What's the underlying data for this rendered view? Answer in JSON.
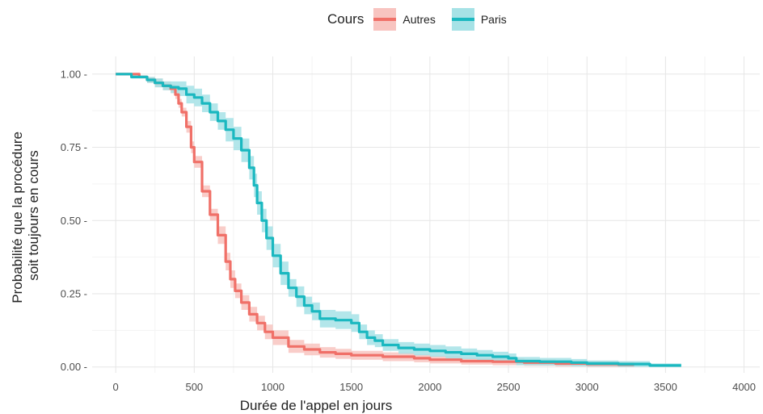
{
  "legend": {
    "title": "Cours",
    "items": [
      {
        "label": "Autres",
        "color": "#F07068",
        "fill": "#F8C4C0"
      },
      {
        "label": "Paris",
        "color": "#1AB8C0",
        "fill": "#A6E2E6"
      }
    ]
  },
  "chart_data": {
    "type": "line",
    "xlabel": "Durée de l'appel en jours",
    "ylabel": [
      "Probabilité que la procédure",
      "soit toujours en cours"
    ],
    "xlim": [
      -150,
      4100
    ],
    "ylim": [
      -0.02,
      1.06
    ],
    "xticks": [
      0,
      500,
      1000,
      1500,
      2000,
      2500,
      3000,
      3500,
      4000
    ],
    "xtick_labels": [
      "0",
      "500",
      "1000",
      "1500",
      "2000",
      "2500",
      "3000",
      "3500",
      "4000"
    ],
    "yticks": [
      0,
      0.25,
      0.5,
      0.75,
      1
    ],
    "ytick_labels": [
      "0.00 -",
      "0.25 -",
      "0.50 -",
      "0.75 -",
      "1.00 -"
    ],
    "grid": true,
    "legend_position": "top",
    "series": [
      {
        "name": "Autres",
        "color": "#F07068",
        "band_color": "#F8C4C0",
        "x": [
          0,
          100,
          150,
          200,
          250,
          300,
          350,
          380,
          400,
          420,
          450,
          480,
          500,
          550,
          600,
          650,
          700,
          730,
          760,
          800,
          850,
          900,
          950,
          1000,
          1100,
          1200,
          1300,
          1400,
          1500,
          1600,
          1700,
          1800,
          1900,
          2000,
          2200,
          2400,
          2600,
          2800,
          3000,
          3200,
          3300
        ],
        "y": [
          1.0,
          1.0,
          0.99,
          0.98,
          0.97,
          0.96,
          0.95,
          0.93,
          0.9,
          0.87,
          0.82,
          0.75,
          0.7,
          0.6,
          0.52,
          0.45,
          0.36,
          0.3,
          0.26,
          0.22,
          0.18,
          0.15,
          0.12,
          0.1,
          0.07,
          0.06,
          0.05,
          0.045,
          0.04,
          0.04,
          0.035,
          0.035,
          0.03,
          0.025,
          0.02,
          0.018,
          0.015,
          0.012,
          0.01,
          0.008,
          0.008
        ],
        "lower": [
          1.0,
          1.0,
          0.985,
          0.97,
          0.955,
          0.945,
          0.935,
          0.915,
          0.885,
          0.855,
          0.8,
          0.73,
          0.68,
          0.58,
          0.5,
          0.42,
          0.33,
          0.27,
          0.235,
          0.195,
          0.155,
          0.125,
          0.095,
          0.075,
          0.048,
          0.04,
          0.032,
          0.028,
          0.025,
          0.025,
          0.02,
          0.02,
          0.016,
          0.012,
          0.008,
          0.006,
          0.004,
          0.002,
          0.0,
          0.0,
          0.0
        ],
        "upper": [
          1.0,
          1.0,
          0.995,
          0.99,
          0.985,
          0.975,
          0.965,
          0.945,
          0.915,
          0.885,
          0.84,
          0.77,
          0.72,
          0.62,
          0.54,
          0.48,
          0.39,
          0.33,
          0.285,
          0.245,
          0.205,
          0.175,
          0.145,
          0.125,
          0.092,
          0.08,
          0.068,
          0.062,
          0.055,
          0.055,
          0.05,
          0.05,
          0.044,
          0.038,
          0.032,
          0.03,
          0.026,
          0.022,
          0.02,
          0.018,
          0.018
        ]
      },
      {
        "name": "Paris",
        "color": "#1AB8C0",
        "band_color": "#A6E2E6",
        "x": [
          0,
          100,
          200,
          250,
          300,
          350,
          400,
          450,
          500,
          550,
          600,
          650,
          700,
          750,
          800,
          850,
          880,
          900,
          930,
          960,
          1000,
          1050,
          1100,
          1150,
          1200,
          1250,
          1300,
          1400,
          1500,
          1550,
          1600,
          1650,
          1700,
          1800,
          1900,
          2000,
          2100,
          2200,
          2300,
          2400,
          2500,
          2550,
          2700,
          2900,
          3000,
          3200,
          3400,
          3600
        ],
        "y": [
          1.0,
          0.99,
          0.98,
          0.97,
          0.96,
          0.955,
          0.95,
          0.93,
          0.92,
          0.9,
          0.87,
          0.84,
          0.81,
          0.78,
          0.74,
          0.68,
          0.62,
          0.56,
          0.5,
          0.44,
          0.38,
          0.32,
          0.27,
          0.24,
          0.21,
          0.19,
          0.165,
          0.16,
          0.15,
          0.12,
          0.1,
          0.09,
          0.075,
          0.065,
          0.06,
          0.055,
          0.05,
          0.045,
          0.04,
          0.035,
          0.03,
          0.02,
          0.018,
          0.015,
          0.012,
          0.01,
          0.005,
          0.005
        ],
        "lower": [
          1.0,
          0.985,
          0.97,
          0.955,
          0.945,
          0.935,
          0.925,
          0.9,
          0.89,
          0.87,
          0.84,
          0.81,
          0.77,
          0.74,
          0.7,
          0.64,
          0.58,
          0.52,
          0.46,
          0.4,
          0.34,
          0.28,
          0.24,
          0.205,
          0.18,
          0.16,
          0.135,
          0.13,
          0.12,
          0.095,
          0.075,
          0.068,
          0.055,
          0.045,
          0.04,
          0.035,
          0.03,
          0.027,
          0.022,
          0.018,
          0.014,
          0.006,
          0.005,
          0.003,
          0.002,
          0.0,
          0.0,
          0.0
        ],
        "upper": [
          1.0,
          0.995,
          0.99,
          0.985,
          0.975,
          0.975,
          0.975,
          0.96,
          0.95,
          0.93,
          0.9,
          0.87,
          0.85,
          0.82,
          0.78,
          0.72,
          0.66,
          0.6,
          0.54,
          0.48,
          0.42,
          0.36,
          0.3,
          0.275,
          0.24,
          0.22,
          0.195,
          0.19,
          0.18,
          0.145,
          0.125,
          0.112,
          0.095,
          0.085,
          0.08,
          0.075,
          0.07,
          0.063,
          0.058,
          0.052,
          0.046,
          0.034,
          0.031,
          0.027,
          0.022,
          0.02,
          0.012,
          0.012
        ]
      }
    ]
  }
}
